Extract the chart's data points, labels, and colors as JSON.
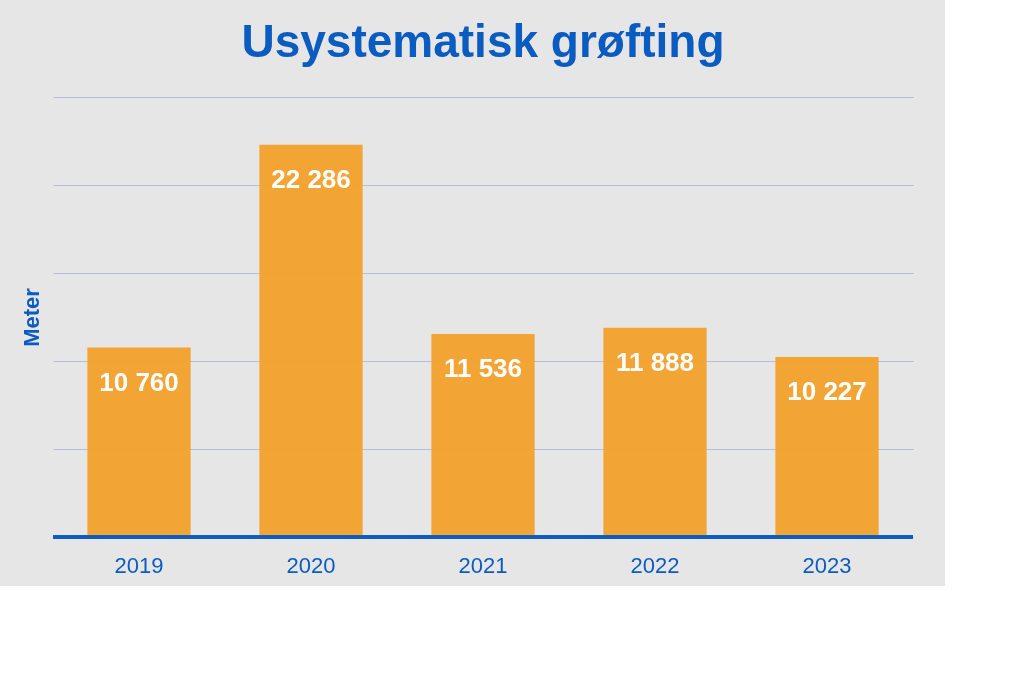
{
  "chart_data": {
    "type": "bar",
    "title": "Usystematisk grøfting",
    "ylabel": "Meter",
    "categories": [
      "2019",
      "2020",
      "2021",
      "2022",
      "2023"
    ],
    "values": [
      10760,
      22286,
      11536,
      11888,
      10227
    ],
    "value_labels": [
      "10 760",
      "22 286",
      "11 536",
      "11 888",
      "10 227"
    ],
    "color": "#f2a02a",
    "ylim": [
      0,
      25000
    ],
    "yticks": [
      {
        "value": 0,
        "label": null
      },
      {
        "value": 5000,
        "label": null
      },
      {
        "value": 10000,
        "label": null
      },
      {
        "value": 15000,
        "label": null
      },
      {
        "value": 20000,
        "label": null
      },
      {
        "value": 25000,
        "label": null
      }
    ],
    "grid": "y",
    "tick_labels": "x"
  }
}
